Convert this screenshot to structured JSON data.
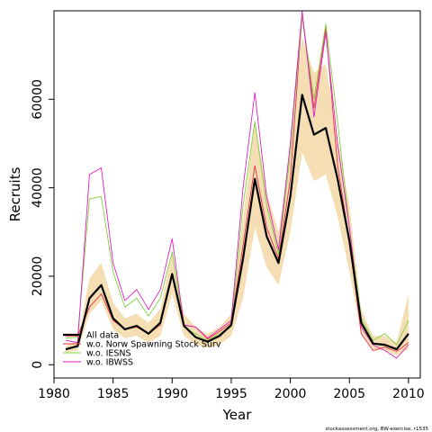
{
  "chart_data": {
    "type": "line",
    "xlabel": "Year",
    "ylabel": "Recruits",
    "xlim": [
      1980,
      2011
    ],
    "ylim": [
      -3000,
      80000
    ],
    "x_ticks": [
      1980,
      1985,
      1990,
      1995,
      2000,
      2005,
      2010
    ],
    "y_ticks": [
      0,
      20000,
      40000,
      60000
    ],
    "grid": false,
    "legend_position": "bottom-left",
    "footnote": "stockassessment.org, BW-exercise, r1535",
    "x": [
      1981,
      1982,
      1983,
      1984,
      1985,
      1986,
      1987,
      1988,
      1989,
      1990,
      1991,
      1992,
      1993,
      1994,
      1995,
      1996,
      1997,
      1998,
      1999,
      2000,
      2001,
      2002,
      2003,
      2004,
      2005,
      2006,
      2007,
      2008,
      2009,
      2010
    ],
    "band": {
      "color": "#f5deb3",
      "lower": [
        2800,
        3200,
        11500,
        14500,
        8000,
        6000,
        6500,
        5000,
        6500,
        16000,
        6500,
        4500,
        3800,
        4500,
        6500,
        15000,
        31000,
        22000,
        18000,
        30000,
        48000,
        41500,
        43000,
        33500,
        21000,
        7000,
        3500,
        3200,
        2200,
        3500
      ],
      "upper": [
        4200,
        5500,
        19500,
        23000,
        14000,
        10500,
        11500,
        9500,
        12500,
        25500,
        11500,
        8500,
        7000,
        8500,
        11500,
        33000,
        55000,
        39000,
        30000,
        47000,
        74000,
        66000,
        68000,
        51000,
        36000,
        12500,
        6500,
        6500,
        5000,
        16000
      ]
    },
    "series": [
      {
        "name": "All data",
        "color": "#000000",
        "width": 2.2,
        "values": [
          3500,
          4200,
          15000,
          18000,
          10500,
          8000,
          8800,
          7000,
          9500,
          20500,
          8800,
          6200,
          5200,
          6500,
          9000,
          24000,
          42000,
          29000,
          23000,
          38000,
          61000,
          52000,
          53500,
          42000,
          28000,
          9500,
          4800,
          4500,
          3500,
          7000
        ]
      },
      {
        "name": "w.o. Norw Spawning Stock Surv",
        "color": "#e8304a",
        "width": 0.9,
        "values": [
          6500,
          6500,
          13000,
          16000,
          10000,
          8000,
          8500,
          7000,
          9000,
          20000,
          9000,
          8500,
          5800,
          7500,
          9500,
          27000,
          45000,
          31000,
          24000,
          42000,
          79000,
          58000,
          76000,
          45000,
          28000,
          7000,
          3200,
          4000,
          3000,
          5000
        ]
      },
      {
        "name": "w.o. IESNS",
        "color": "#80d040",
        "width": 0.9,
        "values": [
          6000,
          6200,
          37500,
          38000,
          21000,
          13000,
          15000,
          11000,
          15000,
          25500,
          8500,
          7000,
          5500,
          7000,
          8500,
          36000,
          55000,
          36000,
          25000,
          48000,
          79000,
          60000,
          77000,
          55000,
          31000,
          10500,
          5500,
          7000,
          4500,
          10000
        ]
      },
      {
        "name": "w.o. IBWSS",
        "color": "#e020c0",
        "width": 0.9,
        "values": [
          5500,
          5000,
          43000,
          44500,
          23000,
          14500,
          17000,
          12500,
          17000,
          28500,
          9000,
          8500,
          6000,
          8000,
          10000,
          40000,
          61500,
          38000,
          26000,
          50000,
          80000,
          56000,
          75000,
          50000,
          31000,
          8500,
          4500,
          3200,
          1500,
          4500
        ]
      }
    ]
  }
}
